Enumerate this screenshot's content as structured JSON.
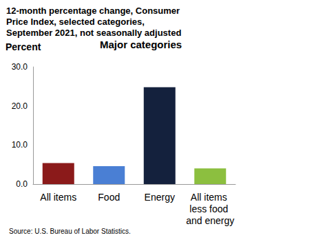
{
  "chart_data": {
    "type": "bar",
    "title": "12-month percentage change, Consumer Price Index, selected categories, September 2021, not seasonally adjusted",
    "subtitle": "Major categories",
    "y_label": "Percent",
    "source": "Source: U.S. Bureau of Labor Statistics.",
    "categories": [
      "All items",
      "Food",
      "Energy",
      "All items less food and energy"
    ],
    "values": [
      5.4,
      4.6,
      24.8,
      4.0
    ],
    "colors": [
      "#8b1a1a",
      "#4a7fd4",
      "#14213d",
      "#8cbf3f"
    ],
    "ylim": [
      0,
      30
    ],
    "yticks": [
      {
        "value": 0,
        "label": "0.0"
      },
      {
        "value": 10,
        "label": "10.0"
      },
      {
        "value": 20,
        "label": "20.0"
      },
      {
        "value": 30,
        "label": "30.0"
      }
    ],
    "grid": false
  }
}
